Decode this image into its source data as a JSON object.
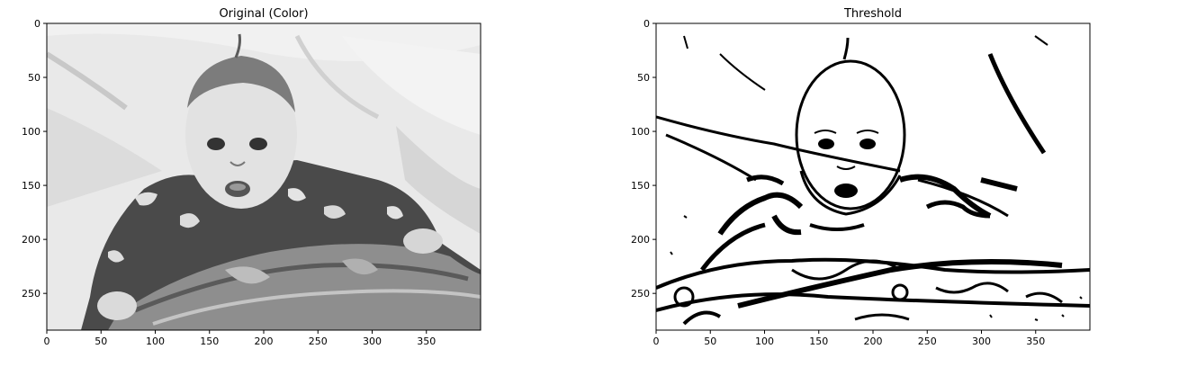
{
  "chart_data": [
    {
      "type": "image",
      "title": "Original (Color)",
      "xlim": [
        0,
        400
      ],
      "ylim": [
        284,
        0
      ],
      "xticks": [
        0,
        50,
        100,
        150,
        200,
        250,
        300,
        350
      ],
      "yticks": [
        0,
        50,
        100,
        150,
        200,
        250
      ],
      "tone": "grayscale"
    },
    {
      "type": "image",
      "title": "Threshold",
      "xlim": [
        0,
        400
      ],
      "ylim": [
        284,
        0
      ],
      "xticks": [
        0,
        50,
        100,
        150,
        200,
        250,
        300,
        350
      ],
      "yticks": [
        0,
        50,
        100,
        150,
        200,
        250
      ],
      "tone": "binary"
    }
  ]
}
